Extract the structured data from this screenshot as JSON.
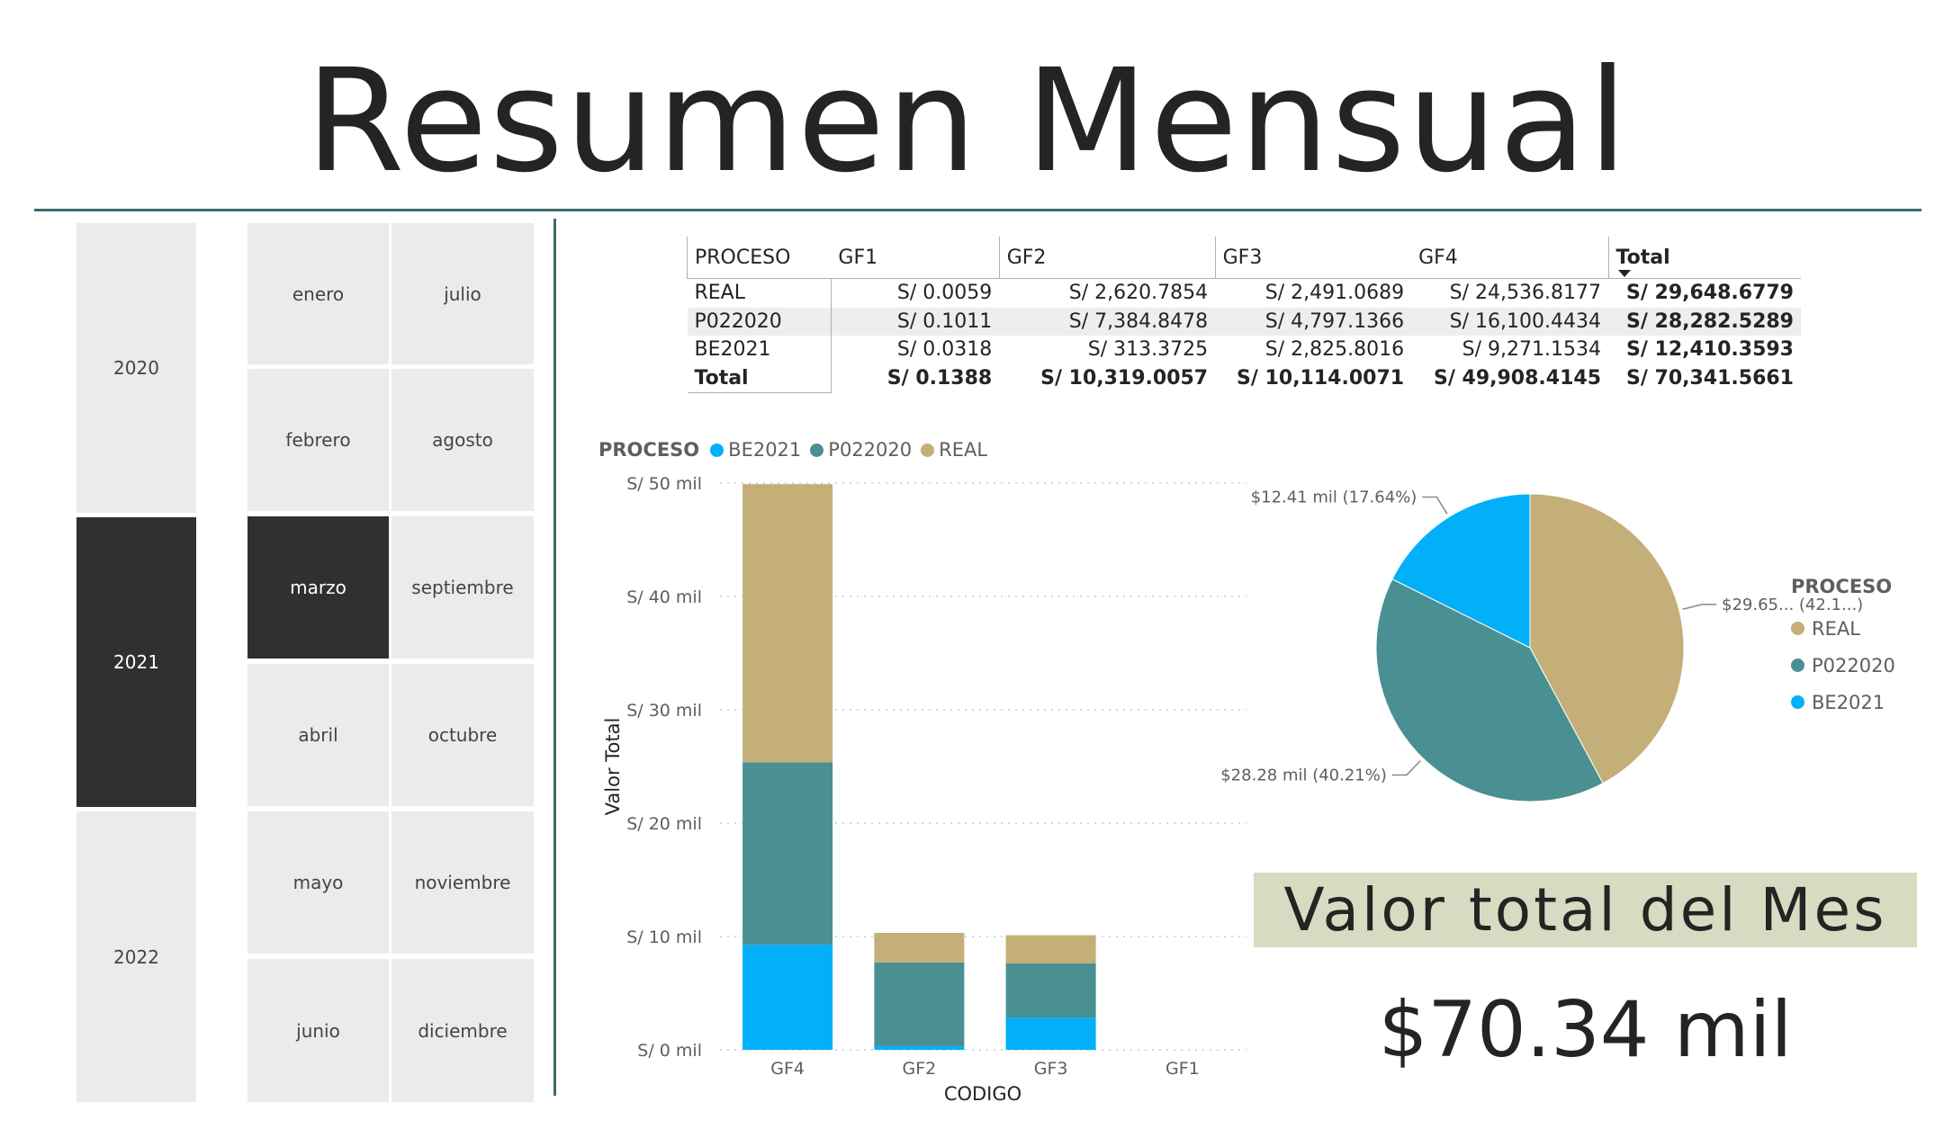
{
  "title": "Resumen Mensual",
  "colors": {
    "BE2021": "#01b0f9",
    "P022020": "#4a9093",
    "REAL": "#c4af79",
    "selected": "#303030",
    "tile": "#ebebeb",
    "kpi_band": "#d8dac2"
  },
  "years": [
    {
      "label": "2020",
      "selected": false
    },
    {
      "label": "2021",
      "selected": true
    },
    {
      "label": "2022",
      "selected": false
    }
  ],
  "months_col1": [
    {
      "label": "enero",
      "selected": false
    },
    {
      "label": "febrero",
      "selected": false
    },
    {
      "label": "marzo",
      "selected": true
    },
    {
      "label": "abril",
      "selected": false
    },
    {
      "label": "mayo",
      "selected": false
    },
    {
      "label": "junio",
      "selected": false
    }
  ],
  "months_col2": [
    {
      "label": "julio",
      "selected": false
    },
    {
      "label": "agosto",
      "selected": false
    },
    {
      "label": "septiembre",
      "selected": false
    },
    {
      "label": "octubre",
      "selected": false
    },
    {
      "label": "noviembre",
      "selected": false
    },
    {
      "label": "diciembre",
      "selected": false
    }
  ],
  "table": {
    "headers": [
      "PROCESO",
      "GF1",
      "GF2",
      "GF3",
      "GF4",
      "Total"
    ],
    "rows": [
      {
        "label": "REAL",
        "values": [
          "S/ 0.0059",
          "S/ 2,620.7854",
          "S/ 2,491.0689",
          "S/ 24,536.8177",
          "S/ 29,648.6779"
        ]
      },
      {
        "label": "P022020",
        "values": [
          "S/ 0.1011",
          "S/ 7,384.8478",
          "S/ 4,797.1366",
          "S/ 16,100.4434",
          "S/ 28,282.5289"
        ]
      },
      {
        "label": "BE2021",
        "values": [
          "S/ 0.0318",
          "S/ 313.3725",
          "S/ 2,825.8016",
          "S/ 9,271.1534",
          "S/ 12,410.3593"
        ]
      }
    ],
    "total_row": {
      "label": "Total",
      "values": [
        "S/ 0.1388",
        "S/ 10,319.0057",
        "S/ 10,114.0071",
        "S/ 49,908.4145",
        "S/ 70,341.5661"
      ]
    }
  },
  "bar_legend": {
    "title": "PROCESO",
    "items": [
      {
        "name": "BE2021",
        "color": "#01b0f9"
      },
      {
        "name": "P022020",
        "color": "#4a9093"
      },
      {
        "name": "REAL",
        "color": "#c4af79"
      }
    ]
  },
  "pie_legend": {
    "title": "PROCESO",
    "items": [
      {
        "name": "REAL",
        "color": "#c4af79"
      },
      {
        "name": "P022020",
        "color": "#4a9093"
      },
      {
        "name": "BE2021",
        "color": "#01b0f9"
      }
    ]
  },
  "chart_data": [
    {
      "type": "bar",
      "stacked": true,
      "categories": [
        "GF4",
        "GF2",
        "GF3",
        "GF1"
      ],
      "series": [
        {
          "name": "BE2021",
          "color": "#01b0f9",
          "values": [
            9271.1534,
            313.3725,
            2825.8016,
            0.0318
          ]
        },
        {
          "name": "P022020",
          "color": "#4a9093",
          "values": [
            16100.4434,
            7384.8478,
            4797.1366,
            0.1011
          ]
        },
        {
          "name": "REAL",
          "color": "#c4af79",
          "values": [
            24536.8177,
            2620.7854,
            2491.0689,
            0.0059
          ]
        }
      ],
      "ylim": [
        0,
        50000
      ],
      "yticks": [
        {
          "value": 0,
          "label": "S/ 0 mil"
        },
        {
          "value": 10000,
          "label": "S/ 10 mil"
        },
        {
          "value": 20000,
          "label": "S/ 20 mil"
        },
        {
          "value": 30000,
          "label": "S/ 30 mil"
        },
        {
          "value": 40000,
          "label": "S/ 40 mil"
        },
        {
          "value": 50000,
          "label": "S/ 50 mil"
        }
      ],
      "xlabel": "CODIGO",
      "ylabel": "Valor Total",
      "grid": true,
      "legend": "top-left"
    },
    {
      "type": "pie",
      "slices": [
        {
          "name": "REAL",
          "value": 29648.6779,
          "color": "#c4af79",
          "label": "$29.65... (42.1...)"
        },
        {
          "name": "P022020",
          "value": 28282.5289,
          "color": "#4a9093",
          "label": "$28.28 mil (40.21%)"
        },
        {
          "name": "BE2021",
          "value": 12410.3593,
          "color": "#01b0f9",
          "label": "$12.41 mil (17.64%)"
        }
      ],
      "legend": "right"
    }
  ],
  "kpi": {
    "label": "Valor total del Mes",
    "value": "$70.34 mil"
  }
}
